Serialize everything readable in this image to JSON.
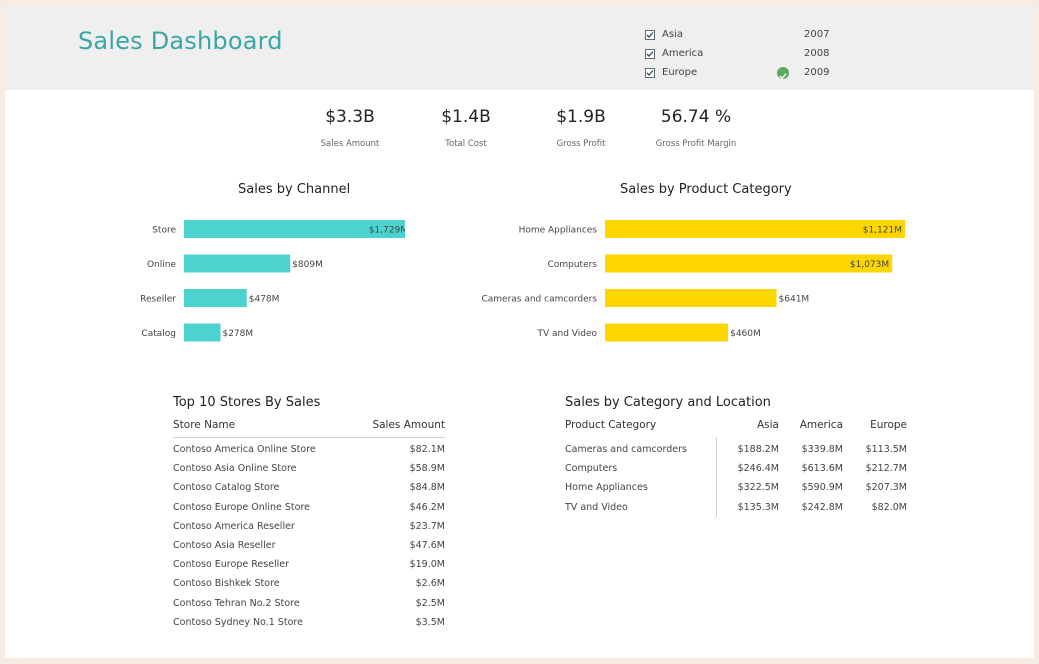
{
  "header": {
    "title": "Sales Dashboard",
    "regions": [
      {
        "label": "Asia",
        "checked": true
      },
      {
        "label": "America",
        "checked": true
      },
      {
        "label": "Europe",
        "checked": true
      }
    ],
    "years": [
      "2007",
      "2008",
      "2009"
    ],
    "selected_year_icon": "check-circle-icon"
  },
  "kpis": [
    {
      "value": "$3.3B",
      "label": "Sales Amount"
    },
    {
      "value": "$1.4B",
      "label": "Total Cost"
    },
    {
      "value": "$1.9B",
      "label": "Gross Profit"
    },
    {
      "value": "56.74 %",
      "label": "Gross Profit Margin"
    }
  ],
  "chart_data": [
    {
      "type": "bar",
      "orientation": "horizontal",
      "title": "Sales by Channel",
      "categories": [
        "Store",
        "Online",
        "Reseller",
        "Catalog"
      ],
      "values": [
        1729,
        809,
        478,
        278
      ],
      "labels": [
        "$1,729M",
        "$809M",
        "$478M",
        "$278M"
      ],
      "unit": "$M",
      "color": "#4dd3cf",
      "xlim": [
        0,
        1729
      ]
    },
    {
      "type": "bar",
      "orientation": "horizontal",
      "title": "Sales by Product Category",
      "categories": [
        "Home Appliances",
        "Computers",
        "Cameras and camcorders",
        "TV and Video"
      ],
      "values": [
        1121,
        1073,
        641,
        460
      ],
      "labels": [
        "$1,121M",
        "$1,073M",
        "$641M",
        "$460M"
      ],
      "unit": "$M",
      "color": "#ffd700",
      "xlim": [
        0,
        1121
      ]
    }
  ],
  "top_stores": {
    "title": "Top 10 Stores By Sales",
    "columns": [
      "Store Name",
      "Sales Amount"
    ],
    "rows": [
      [
        "Contoso America Online Store",
        "$82.1M"
      ],
      [
        "Contoso Asia Online Store",
        "$58.9M"
      ],
      [
        "Contoso Catalog Store",
        "$84.8M"
      ],
      [
        "Contoso Europe Online Store",
        "$46.2M"
      ],
      [
        "Contoso America Reseller",
        "$23.7M"
      ],
      [
        "Contoso Asia Reseller",
        "$47.6M"
      ],
      [
        "Contoso Europe Reseller",
        "$19.0M"
      ],
      [
        "Contoso Bishkek Store",
        "$2.6M"
      ],
      [
        "Contoso Tehran No.2 Store",
        "$2.5M"
      ],
      [
        "Contoso Sydney No.1 Store",
        "$3.5M"
      ]
    ]
  },
  "category_location": {
    "title": "Sales by Category and Location",
    "columns": [
      "Product Category",
      "Asia",
      "America",
      "Europe"
    ],
    "rows": [
      [
        "Cameras and camcorders",
        "$188.2M",
        "$339.8M",
        "$113.5M"
      ],
      [
        "Computers",
        "$246.4M",
        "$613.6M",
        "$212.7M"
      ],
      [
        "Home Appliances",
        "$322.5M",
        "$590.9M",
        "$207.3M"
      ],
      [
        "TV and Video",
        "$135.3M",
        "$242.8M",
        "$82.0M"
      ]
    ]
  }
}
